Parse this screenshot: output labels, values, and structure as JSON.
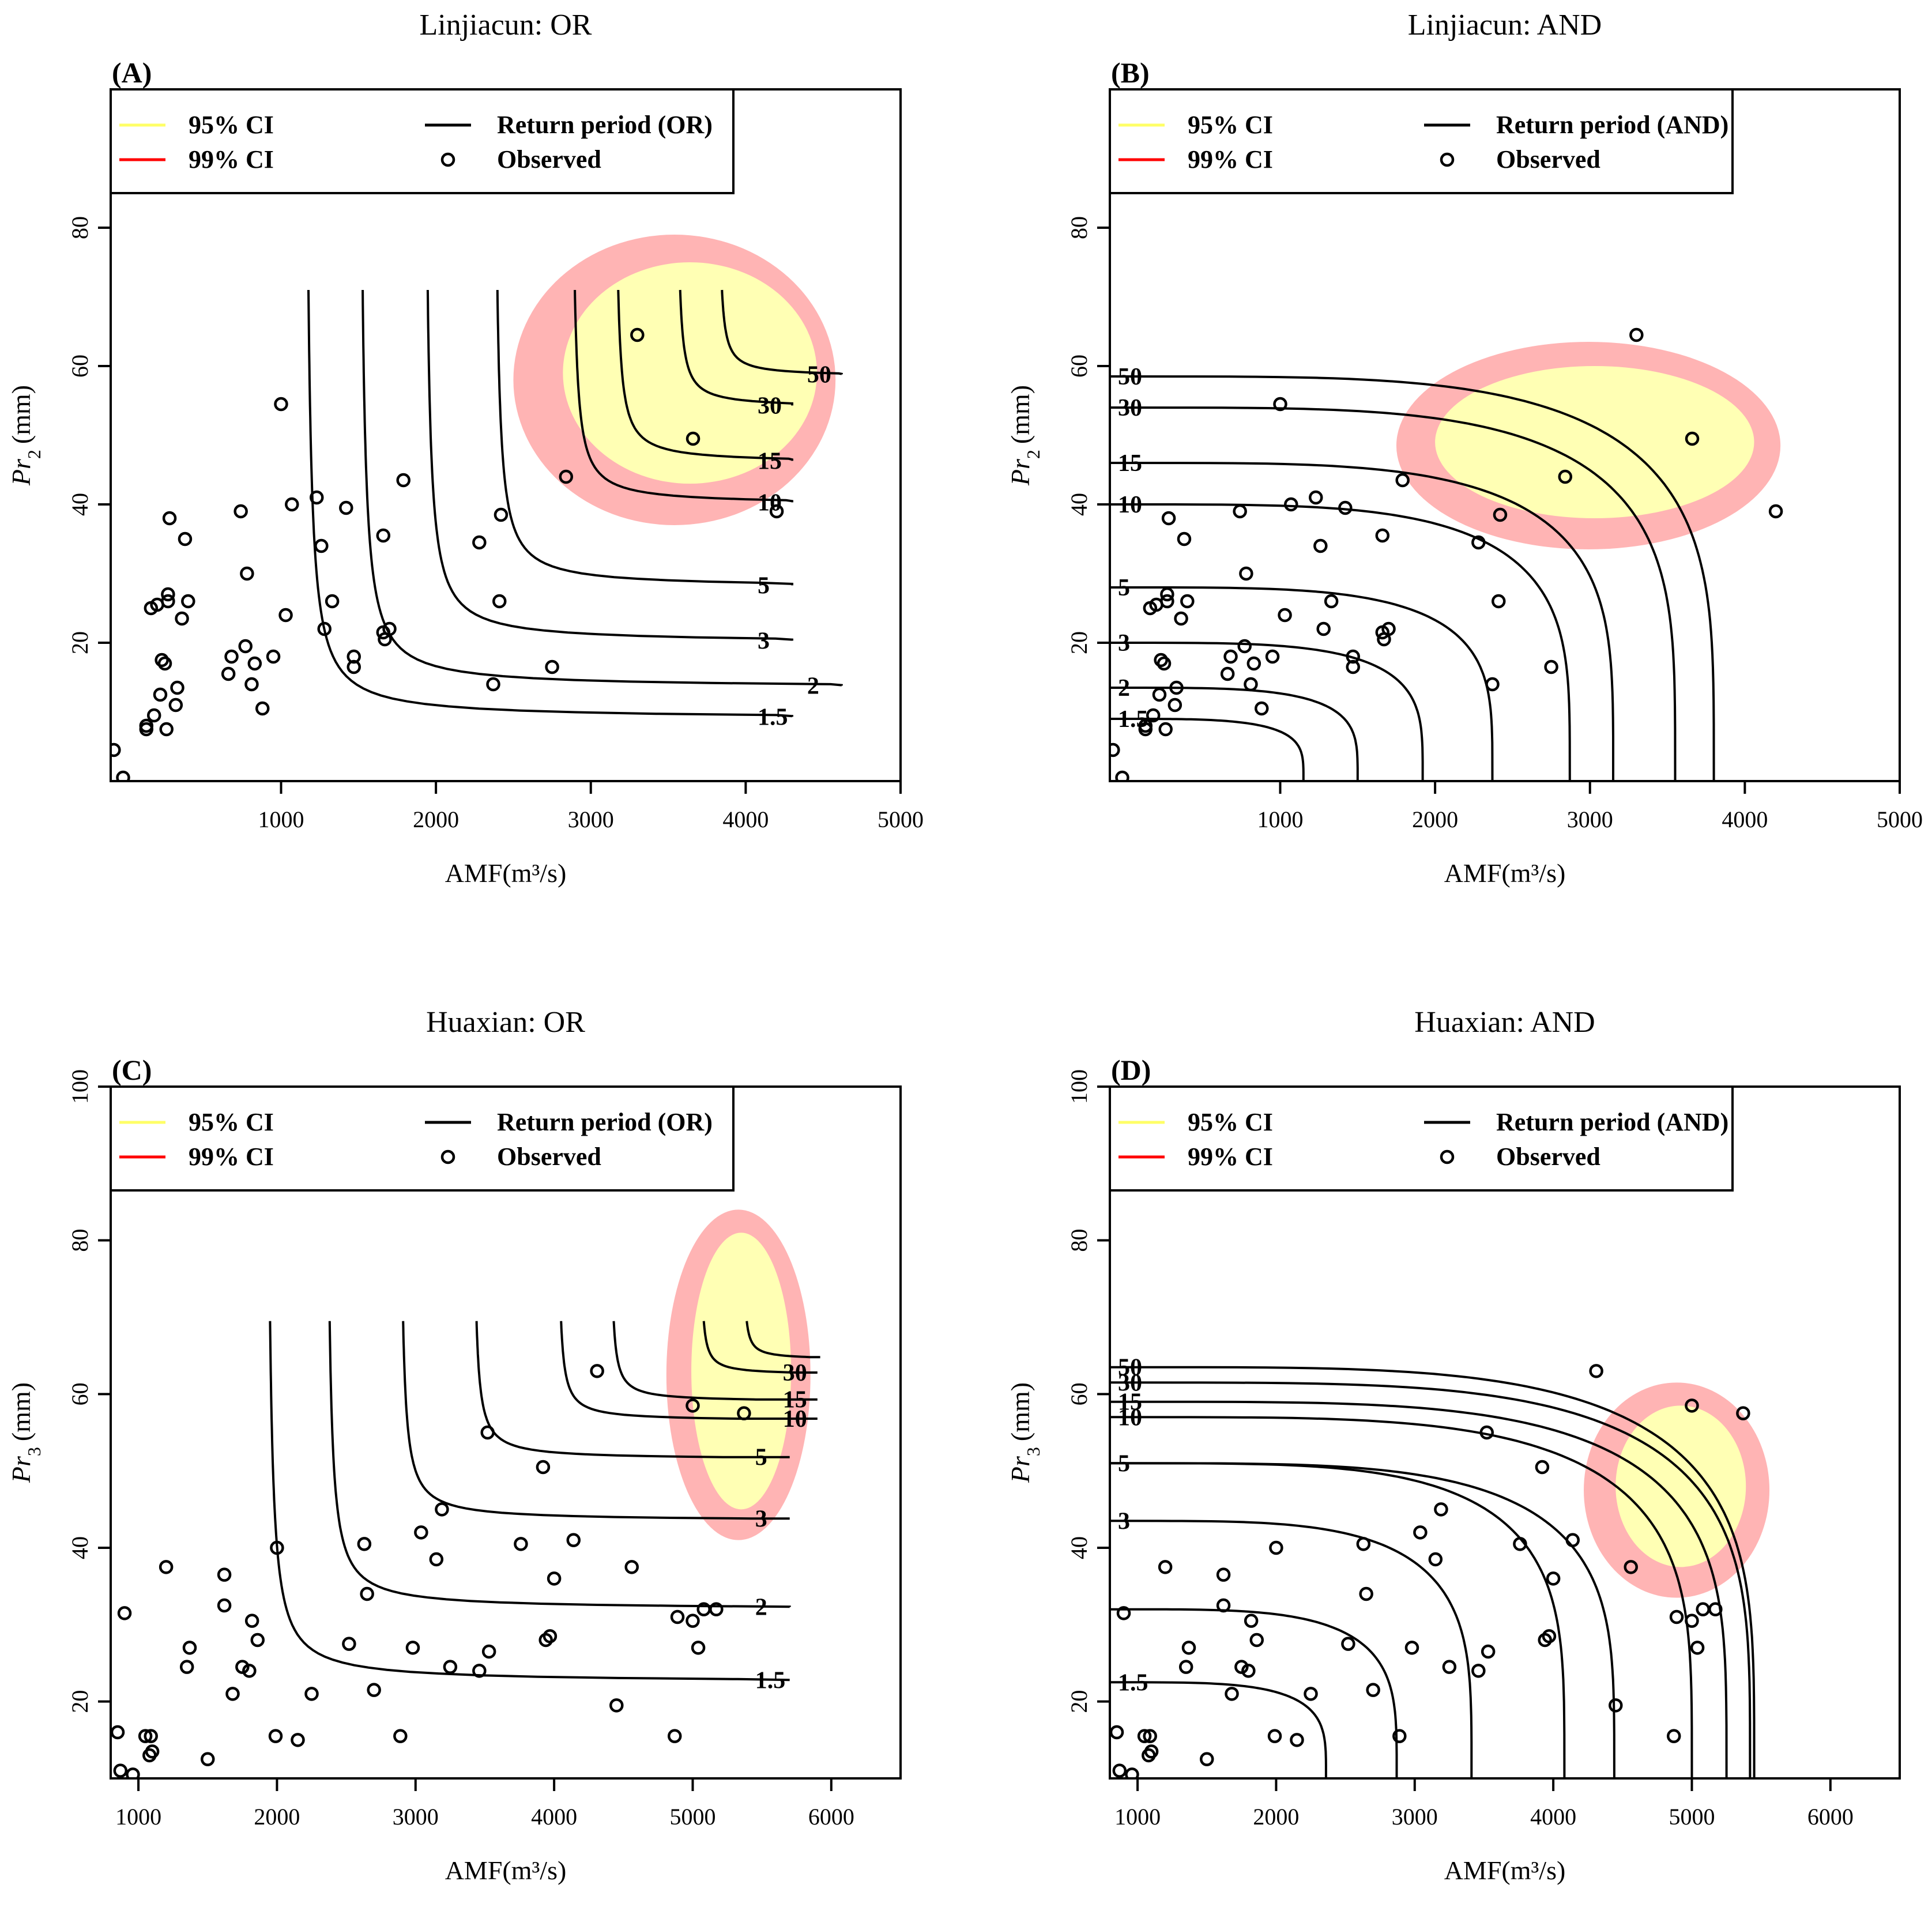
{
  "figure": {
    "panel_titles": [
      "Linjiacun: OR",
      "Linjiacun: AND",
      "Huaxian: OR",
      "Huaxian: AND"
    ]
  },
  "colors": {
    "ci95": "#ffff66",
    "ci95_fill": "#ffffb4",
    "ci99": "#ff0000",
    "ci99_fill": "#ffb4b4",
    "contour": "#000000"
  },
  "legend": {
    "ci95": "95% CI",
    "ci99": "99% CI",
    "observed": "Observed"
  },
  "chart_data": [
    {
      "type": "scatter",
      "panel": "(A)",
      "title": "Linjiacun: OR",
      "xlabel": "AMF(m³/s)",
      "ylabel_base": "Pr",
      "ylabel_sub": "2",
      "ylabel_unit": "(mm)",
      "xlim": [
        -100,
        5000
      ],
      "ylim": [
        0,
        100
      ],
      "xticks": [
        1000,
        2000,
        3000,
        4000,
        5000
      ],
      "yticks": [
        20,
        40,
        60,
        80
      ],
      "legend_return": "Return period (OR)",
      "contour_mode": "OR",
      "contour_levels": [
        {
          "label": "1.5",
          "x0": 1150,
          "y0": 9,
          "xmax": 4300,
          "ytop": 71
        },
        {
          "label": "2",
          "x0": 1500,
          "y0": 13.5,
          "xmax": 4620,
          "ytop": 71
        },
        {
          "label": "3",
          "x0": 1920,
          "y0": 20,
          "xmax": 4300,
          "ytop": 71
        },
        {
          "label": "5",
          "x0": 2370,
          "y0": 28,
          "xmax": 4300,
          "ytop": 71
        },
        {
          "label": "10",
          "x0": 2870,
          "y0": 40,
          "xmax": 4300,
          "ytop": 71
        },
        {
          "label": "15",
          "x0": 3150,
          "y0": 46,
          "xmax": 4300,
          "ytop": 71
        },
        {
          "label": "30",
          "x0": 3550,
          "y0": 54,
          "xmax": 4300,
          "ytop": 71
        },
        {
          "label": "50",
          "x0": 3820,
          "y0": 58.5,
          "xmax": 4620,
          "ytop": 71
        }
      ],
      "ci95": {
        "cx": 3640,
        "cy": 59,
        "rx": 820,
        "ry": 16
      },
      "ci99": {
        "cx": 3540,
        "cy": 58,
        "rx": 1040,
        "ry": 21
      },
      "observed": [
        [
          -80,
          4.5
        ],
        [
          -20,
          0.5
        ],
        [
          130,
          7.5
        ],
        [
          130,
          8
        ],
        [
          160,
          25
        ],
        [
          180,
          9.5
        ],
        [
          200,
          25.5
        ],
        [
          220,
          12.5
        ],
        [
          230,
          17.5
        ],
        [
          250,
          17
        ],
        [
          260,
          7.5
        ],
        [
          270,
          27
        ],
        [
          270,
          26
        ],
        [
          280,
          38
        ],
        [
          320,
          11
        ],
        [
          330,
          13.5
        ],
        [
          360,
          23.5
        ],
        [
          380,
          35
        ],
        [
          400,
          26
        ],
        [
          660,
          15.5
        ],
        [
          680,
          18
        ],
        [
          740,
          39
        ],
        [
          770,
          19.5
        ],
        [
          780,
          30
        ],
        [
          810,
          14
        ],
        [
          830,
          17
        ],
        [
          880,
          10.5
        ],
        [
          950,
          18
        ],
        [
          1000,
          54.5
        ],
        [
          1030,
          24
        ],
        [
          1070,
          40
        ],
        [
          1230,
          41
        ],
        [
          1260,
          34
        ],
        [
          1280,
          22
        ],
        [
          1330,
          26
        ],
        [
          1420,
          39.5
        ],
        [
          1470,
          18
        ],
        [
          1470,
          16.5
        ],
        [
          1660,
          35.5
        ],
        [
          1660,
          21.5
        ],
        [
          1670,
          20.5
        ],
        [
          1700,
          22
        ],
        [
          1790,
          43.5
        ],
        [
          2280,
          34.5
        ],
        [
          2370,
          14
        ],
        [
          2410,
          26
        ],
        [
          2420,
          38.5
        ],
        [
          2750,
          16.5
        ],
        [
          2840,
          44
        ],
        [
          3300,
          64.5
        ],
        [
          3660,
          49.5
        ],
        [
          4200,
          39
        ]
      ]
    },
    {
      "type": "scatter",
      "panel": "(B)",
      "title": "Linjiacun: AND",
      "xlabel": "AMF(m³/s)",
      "ylabel_base": "Pr",
      "ylabel_sub": "2",
      "ylabel_unit": "(mm)",
      "xlim": [
        -100,
        5000
      ],
      "ylim": [
        0,
        100
      ],
      "xticks": [
        1000,
        2000,
        3000,
        4000,
        5000
      ],
      "yticks": [
        20,
        40,
        60,
        80
      ],
      "legend_return": "Return period (AND)",
      "contour_mode": "AND",
      "contour_levels": [
        {
          "label": "1.5",
          "a": 1150,
          "b": 9
        },
        {
          "label": "2",
          "a": 1500,
          "b": 13.5
        },
        {
          "label": "3",
          "a": 1920,
          "b": 20
        },
        {
          "label": "5",
          "a": 2370,
          "b": 28
        },
        {
          "label": "10",
          "a": 2870,
          "b": 40
        },
        {
          "label": "15",
          "a": 3150,
          "b": 46
        },
        {
          "label": "30",
          "a": 3550,
          "b": 54
        },
        {
          "label": "50",
          "a": 3800,
          "b": 58.5
        }
      ],
      "ci95": {
        "cx": 3030,
        "cy": 49,
        "rx": 1030,
        "ry": 11
      },
      "ci99": {
        "cx": 2990,
        "cy": 48.5,
        "rx": 1240,
        "ry": 15
      },
      "observed": [
        [
          -80,
          4.5
        ],
        [
          -20,
          0.5
        ],
        [
          130,
          7.5
        ],
        [
          130,
          8
        ],
        [
          160,
          25
        ],
        [
          180,
          9.5
        ],
        [
          200,
          25.5
        ],
        [
          220,
          12.5
        ],
        [
          230,
          17.5
        ],
        [
          250,
          17
        ],
        [
          260,
          7.5
        ],
        [
          270,
          27
        ],
        [
          270,
          26
        ],
        [
          280,
          38
        ],
        [
          320,
          11
        ],
        [
          330,
          13.5
        ],
        [
          360,
          23.5
        ],
        [
          380,
          35
        ],
        [
          400,
          26
        ],
        [
          660,
          15.5
        ],
        [
          680,
          18
        ],
        [
          740,
          39
        ],
        [
          770,
          19.5
        ],
        [
          780,
          30
        ],
        [
          810,
          14
        ],
        [
          830,
          17
        ],
        [
          880,
          10.5
        ],
        [
          950,
          18
        ],
        [
          1000,
          54.5
        ],
        [
          1030,
          24
        ],
        [
          1070,
          40
        ],
        [
          1230,
          41
        ],
        [
          1260,
          34
        ],
        [
          1280,
          22
        ],
        [
          1330,
          26
        ],
        [
          1420,
          39.5
        ],
        [
          1470,
          18
        ],
        [
          1470,
          16.5
        ],
        [
          1660,
          35.5
        ],
        [
          1660,
          21.5
        ],
        [
          1670,
          20.5
        ],
        [
          1700,
          22
        ],
        [
          1790,
          43.5
        ],
        [
          2280,
          34.5
        ],
        [
          2370,
          14
        ],
        [
          2410,
          26
        ],
        [
          2420,
          38.5
        ],
        [
          2750,
          16.5
        ],
        [
          2840,
          44
        ],
        [
          3300,
          64.5
        ],
        [
          3660,
          49.5
        ],
        [
          4200,
          39
        ]
      ]
    },
    {
      "type": "scatter",
      "panel": "(C)",
      "title": "Huaxian: OR",
      "xlabel": "AMF(m³/s)",
      "ylabel_base": "Pr",
      "ylabel_sub": "3",
      "ylabel_unit": "(mm)",
      "xlim": [
        800,
        6500
      ],
      "ylim": [
        10,
        100
      ],
      "xticks": [
        1000,
        2000,
        3000,
        4000,
        5000,
        6000
      ],
      "yticks": [
        20,
        40,
        60,
        80,
        100
      ],
      "legend_return": "Return period (OR)",
      "contour_mode": "OR",
      "contour_levels": [
        {
          "label": "1.5",
          "x0": 1920,
          "y0": 22.5,
          "xmax": 5700,
          "ytop": 69.5
        },
        {
          "label": "2",
          "x0": 2350,
          "y0": 32,
          "xmax": 5700,
          "ytop": 69.5
        },
        {
          "label": "3",
          "x0": 2880,
          "y0": 43.5,
          "xmax": 5700,
          "ytop": 69.5
        },
        {
          "label": "5",
          "x0": 3410,
          "y0": 51.5,
          "xmax": 5700,
          "ytop": 69.5
        },
        {
          "label": "10",
          "x0": 4020,
          "y0": 56.5,
          "xmax": 5900,
          "ytop": 69.5
        },
        {
          "label": "15",
          "x0": 4400,
          "y0": 59,
          "xmax": 5900,
          "ytop": 69.5
        },
        {
          "label": "30",
          "x0": 5050,
          "y0": 62.5,
          "xmax": 5900,
          "ytop": 69.5
        },
        {
          "label": "",
          "x0": 5360,
          "y0": 64.5,
          "xmax": 5920,
          "ytop": 69.5
        }
      ],
      "ci95": {
        "cx": 5350,
        "cy": 63,
        "rx": 360,
        "ry": 18
      },
      "ci99": {
        "cx": 5330,
        "cy": 62.5,
        "rx": 520,
        "ry": 21.5
      },
      "observed": [
        [
          850,
          16
        ],
        [
          870,
          11
        ],
        [
          900,
          31.5
        ],
        [
          960,
          10.5
        ],
        [
          1050,
          15.5
        ],
        [
          1080,
          13
        ],
        [
          1090,
          15.5
        ],
        [
          1100,
          13.5
        ],
        [
          1200,
          37.5
        ],
        [
          1350,
          24.5
        ],
        [
          1370,
          27
        ],
        [
          1500,
          12.5
        ],
        [
          1620,
          36.5
        ],
        [
          1620,
          32.5
        ],
        [
          1680,
          21
        ],
        [
          1750,
          24.5
        ],
        [
          1800,
          24
        ],
        [
          1820,
          30.5
        ],
        [
          1860,
          28
        ],
        [
          1990,
          15.5
        ],
        [
          2000,
          40
        ],
        [
          2150,
          15
        ],
        [
          2250,
          21
        ],
        [
          2520,
          27.5
        ],
        [
          2630,
          40.5
        ],
        [
          2650,
          34
        ],
        [
          2700,
          21.5
        ],
        [
          2890,
          15.5
        ],
        [
          2980,
          27
        ],
        [
          3040,
          42
        ],
        [
          3150,
          38.5
        ],
        [
          3190,
          45
        ],
        [
          3250,
          24.5
        ],
        [
          3460,
          24
        ],
        [
          3520,
          55
        ],
        [
          3530,
          26.5
        ],
        [
          3760,
          40.5
        ],
        [
          3920,
          50.5
        ],
        [
          3940,
          28
        ],
        [
          3970,
          28.5
        ],
        [
          4000,
          36
        ],
        [
          4140,
          41
        ],
        [
          4310,
          63
        ],
        [
          4450,
          19.5
        ],
        [
          4560,
          37.5
        ],
        [
          4870,
          15.5
        ],
        [
          4890,
          31
        ],
        [
          5000,
          30.5
        ],
        [
          5040,
          27
        ],
        [
          5080,
          32
        ],
        [
          5000,
          58.5
        ],
        [
          5170,
          32
        ],
        [
          5370,
          57.5
        ]
      ]
    },
    {
      "type": "scatter",
      "panel": "(D)",
      "title": "Huaxian: AND",
      "xlabel": "AMF(m³/s)",
      "ylabel_base": "Pr",
      "ylabel_sub": "3",
      "ylabel_unit": "(mm)",
      "xlim": [
        800,
        6500
      ],
      "ylim": [
        10,
        100
      ],
      "xticks": [
        1000,
        2000,
        3000,
        4000,
        5000,
        6000
      ],
      "yticks": [
        20,
        40,
        60,
        80,
        100
      ],
      "legend_return": "Return period (AND)",
      "contour_mode": "AND",
      "contour_levels": [
        {
          "label": "1.5",
          "a": 2360,
          "b": 22.5
        },
        {
          "label": "",
          "a": 2870,
          "b": 32
        },
        {
          "label": "3",
          "a": 3410,
          "b": 43.5
        },
        {
          "label": "",
          "a": 4080,
          "b": 51
        },
        {
          "label": "5",
          "a": 4440,
          "b": 51
        },
        {
          "label": "10",
          "a": 5000,
          "b": 57
        },
        {
          "label": "15",
          "a": 5250,
          "b": 59
        },
        {
          "label": "30",
          "a": 5420,
          "b": 61.5
        },
        {
          "label": "50",
          "a": 5450,
          "b": 63.5
        }
      ],
      "ci95": {
        "cx": 4920,
        "cy": 48,
        "rx": 470,
        "ry": 10.5
      },
      "ci99": {
        "cx": 4890,
        "cy": 47.5,
        "rx": 670,
        "ry": 14
      },
      "observed": [
        [
          850,
          16
        ],
        [
          870,
          11
        ],
        [
          900,
          31.5
        ],
        [
          960,
          10.5
        ],
        [
          1050,
          15.5
        ],
        [
          1080,
          13
        ],
        [
          1090,
          15.5
        ],
        [
          1100,
          13.5
        ],
        [
          1200,
          37.5
        ],
        [
          1350,
          24.5
        ],
        [
          1370,
          27
        ],
        [
          1500,
          12.5
        ],
        [
          1620,
          36.5
        ],
        [
          1620,
          32.5
        ],
        [
          1680,
          21
        ],
        [
          1750,
          24.5
        ],
        [
          1800,
          24
        ],
        [
          1820,
          30.5
        ],
        [
          1860,
          28
        ],
        [
          1990,
          15.5
        ],
        [
          2000,
          40
        ],
        [
          2150,
          15
        ],
        [
          2250,
          21
        ],
        [
          2520,
          27.5
        ],
        [
          2630,
          40.5
        ],
        [
          2650,
          34
        ],
        [
          2700,
          21.5
        ],
        [
          2890,
          15.5
        ],
        [
          2980,
          27
        ],
        [
          3040,
          42
        ],
        [
          3150,
          38.5
        ],
        [
          3190,
          45
        ],
        [
          3250,
          24.5
        ],
        [
          3460,
          24
        ],
        [
          3520,
          55
        ],
        [
          3530,
          26.5
        ],
        [
          3760,
          40.5
        ],
        [
          3920,
          50.5
        ],
        [
          3940,
          28
        ],
        [
          3970,
          28.5
        ],
        [
          4000,
          36
        ],
        [
          4140,
          41
        ],
        [
          4310,
          63
        ],
        [
          4450,
          19.5
        ],
        [
          4560,
          37.5
        ],
        [
          4870,
          15.5
        ],
        [
          4890,
          31
        ],
        [
          5000,
          30.5
        ],
        [
          5040,
          27
        ],
        [
          5080,
          32
        ],
        [
          5000,
          58.5
        ],
        [
          5170,
          32
        ],
        [
          5370,
          57.5
        ]
      ]
    }
  ]
}
